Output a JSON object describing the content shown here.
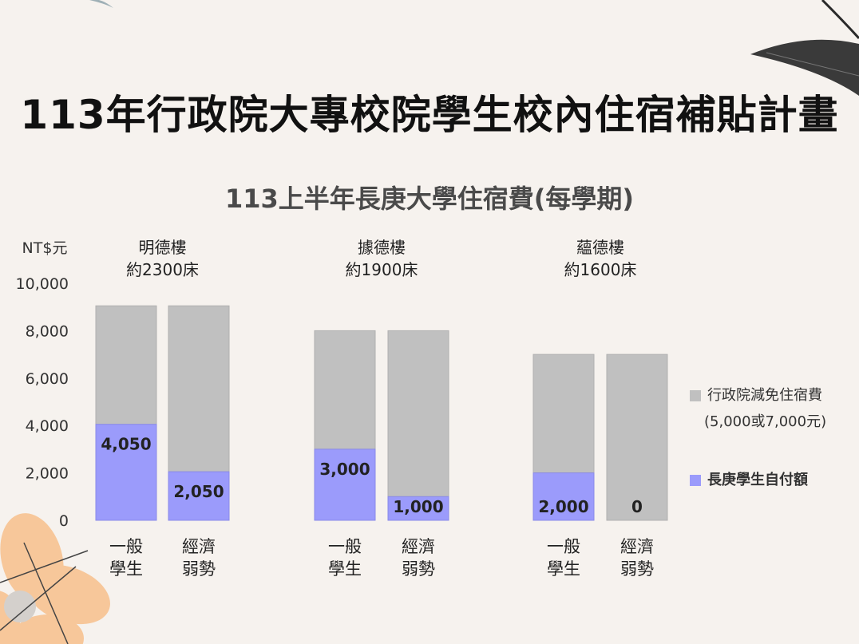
{
  "title": "113年行政院大專校院學生校內住宿補貼計畫",
  "chart_data": {
    "type": "bar",
    "stacked": true,
    "title": "113上半年長庚大學住宿費(每學期)",
    "ylabel": "NT$元",
    "ylim": [
      0,
      10000
    ],
    "yticks": [
      "0",
      "2,000",
      "4,000",
      "6,000",
      "8,000",
      "10,000"
    ],
    "groups": [
      {
        "name": "明德樓",
        "beds": "約2300床"
      },
      {
        "name": "據德樓",
        "beds": "約1900床"
      },
      {
        "name": "蘊德樓",
        "beds": "約1600床"
      }
    ],
    "categories": [
      {
        "line1": "一般",
        "line2": "學生"
      },
      {
        "line1": "經濟",
        "line2": "弱勢"
      },
      {
        "line1": "一般",
        "line2": "學生"
      },
      {
        "line1": "經濟",
        "line2": "弱勢"
      },
      {
        "line1": "一般",
        "line2": "學生"
      },
      {
        "line1": "經濟",
        "line2": "弱勢"
      }
    ],
    "series": [
      {
        "name": "長庚學生自付額",
        "color": "#9b9bfb",
        "values": [
          4050,
          2050,
          3000,
          1000,
          2000,
          0
        ],
        "labels": [
          "4,050",
          "2,050",
          "3,000",
          "1,000",
          "2,000",
          "0"
        ]
      },
      {
        "name": "行政院減免住宿費",
        "name_note": "(5,000或7,000元)",
        "color": "#c0c0c0",
        "values": [
          5000,
          7000,
          5000,
          7000,
          5000,
          7000
        ]
      }
    ],
    "legend_position": "right"
  }
}
